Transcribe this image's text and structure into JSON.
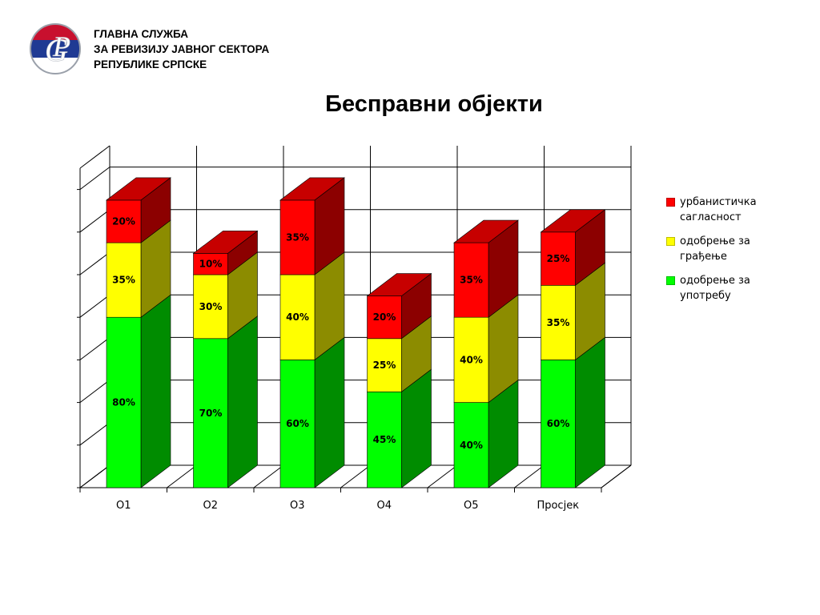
{
  "header": {
    "org_line1": "ГЛАВНА СЛУЖБА",
    "org_line2": "ЗА РЕВИЗИЈУ ЈАВНОГ СЕКТОРА",
    "org_line3": "РЕПУБЛИКЕ СРПСКЕ"
  },
  "logo": {
    "monogram": "GP",
    "colors": [
      "#c8102e",
      "#1f3a93",
      "#ffffff"
    ]
  },
  "page_title": "Бесправни објекти",
  "chart_data": {
    "type": "bar",
    "stacked": true,
    "three_d": true,
    "categories": [
      "О1",
      "О2",
      "О3",
      "О4",
      "О5",
      "Просјек"
    ],
    "series": [
      {
        "name": "одобрење за употребу",
        "color": "#00ff00",
        "values": [
          80,
          70,
          60,
          45,
          40,
          60
        ],
        "labels": [
          "80%",
          "70%",
          "60%",
          "45%",
          "40%",
          "60%"
        ]
      },
      {
        "name": "одобрење за грађење",
        "color": "#ffff00",
        "values": [
          35,
          30,
          40,
          25,
          40,
          35
        ],
        "labels": [
          "35%",
          "30%",
          "40%",
          "25%",
          "40%",
          "35%"
        ]
      },
      {
        "name": "урбанистичка сагласност",
        "color": "#ff0000",
        "values": [
          20,
          10,
          35,
          20,
          35,
          25
        ],
        "labels": [
          "20%",
          "10%",
          "35%",
          "20%",
          "35%",
          "25%"
        ]
      }
    ],
    "ylim": [
      0,
      150
    ],
    "grid": true,
    "legend_position": "right",
    "legend_order": [
      "урбанистичка сагласност",
      "одобрење за грађење",
      "одобрење за употребу"
    ]
  }
}
